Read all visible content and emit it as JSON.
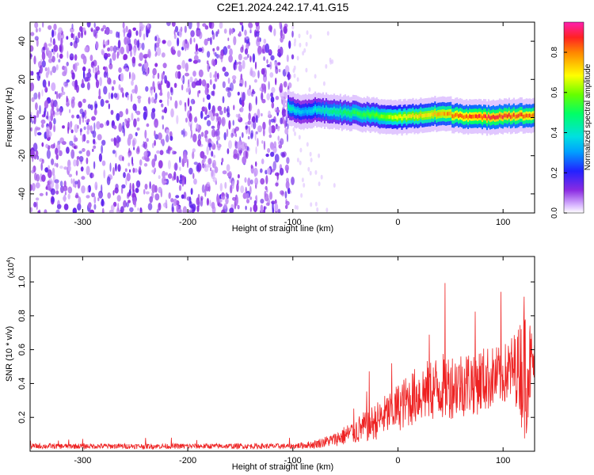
{
  "title": "C2E1.2024.242.17.41.G15",
  "chart_data": [
    {
      "type": "heatmap",
      "xlabel": "Height of straight line (km)",
      "ylabel": "Frequency (Hz)",
      "xlim": [
        -350,
        130
      ],
      "ylim": [
        -50,
        50
      ],
      "xticks": [
        -300,
        -200,
        -100,
        0,
        100
      ],
      "yticks": [
        -40,
        -20,
        0,
        20,
        40
      ],
      "colorbar": {
        "label": "Normalized spectral amplitude",
        "range": [
          0,
          0.95
        ],
        "ticks": [
          0.0,
          0.2,
          0.4,
          0.6,
          0.8
        ]
      },
      "noise_region": {
        "x": [
          -350,
          -100
        ],
        "level": 0.1
      },
      "signal_ridge": {
        "x": [
          -105,
          -90,
          -80,
          -60,
          -40,
          -20,
          0,
          20,
          40,
          60,
          80,
          100,
          130
        ],
        "frequency": [
          5,
          3,
          4,
          3,
          2,
          1,
          0,
          1,
          2,
          1,
          0,
          1,
          1
        ],
        "peak_amplitude": [
          0.45,
          0.35,
          0.4,
          0.5,
          0.55,
          0.6,
          0.7,
          0.75,
          0.8,
          0.85,
          0.9,
          0.9,
          0.85
        ]
      }
    },
    {
      "type": "line",
      "xlabel": "Height of straight line (km)",
      "ylabel": "SNR (10 * v/v)",
      "yscale_label": "(x10",
      "yscale_exp": "4",
      "xlim": [
        -350,
        130
      ],
      "ylim": [
        0,
        1.15
      ],
      "xticks": [
        -300,
        -200,
        -100,
        0,
        100
      ],
      "yticks": [
        0.2,
        0.4,
        0.6,
        0.8,
        1.0
      ],
      "series": [
        {
          "color": "#ee2222",
          "x": [
            -350,
            -300,
            -250,
            -200,
            -150,
            -100,
            -80,
            -60,
            -40,
            -20,
            0,
            20,
            40,
            60,
            80,
            100,
            115,
            120,
            130
          ],
          "y": [
            0.03,
            0.03,
            0.03,
            0.03,
            0.03,
            0.03,
            0.04,
            0.07,
            0.12,
            0.18,
            0.26,
            0.34,
            0.38,
            0.4,
            0.42,
            0.45,
            0.5,
            0.5,
            0.52
          ],
          "spread": [
            0.02,
            0.02,
            0.02,
            0.02,
            0.02,
            0.02,
            0.03,
            0.05,
            0.1,
            0.14,
            0.18,
            0.22,
            0.25,
            0.25,
            0.25,
            0.22,
            0.3,
            0.6,
            0.15
          ]
        }
      ]
    }
  ]
}
